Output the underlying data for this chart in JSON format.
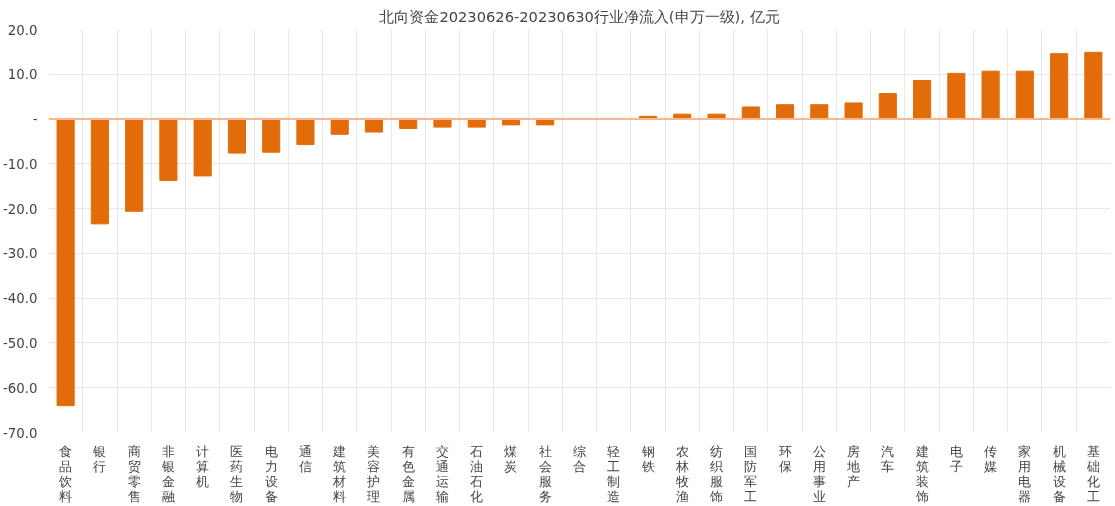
{
  "chart_data": {
    "type": "bar",
    "title": "北向资金20230626-20230630行业净流入(申万一级), 亿元",
    "categories": [
      "食品饮料",
      "银行",
      "商贸零售",
      "非银金融",
      "计算机",
      "医药生物",
      "电力设备",
      "通信",
      "建筑材料",
      "美容护理",
      "有色金属",
      "交通运输",
      "石油石化",
      "煤炭",
      "社会服务",
      "综合",
      "轻工制造",
      "钢铁",
      "农林牧渔",
      "纺织服饰",
      "国防军工",
      "环保",
      "公用事业",
      "房地产",
      "汽车",
      "建筑装饰",
      "电子",
      "传媒",
      "家用电器",
      "机械设备",
      "基础化工"
    ],
    "values": [
      -64.0,
      -23.4,
      -20.6,
      -13.7,
      -12.7,
      -7.6,
      -7.4,
      -5.7,
      -3.4,
      -2.9,
      -2.1,
      -1.8,
      -1.8,
      -1.3,
      -1.3,
      null,
      null,
      0.6,
      1.1,
      1.1,
      2.7,
      3.2,
      3.2,
      3.6,
      5.7,
      8.6,
      10.2,
      10.7,
      10.7,
      14.6,
      14.9
    ],
    "color": "#e36c0a",
    "ylim": [
      -70,
      20
    ],
    "yticks": [
      {
        "value": -70,
        "label": "-70.0"
      },
      {
        "value": -60,
        "label": "-60.0"
      },
      {
        "value": -50,
        "label": "-50.0"
      },
      {
        "value": -40,
        "label": "-40.0"
      },
      {
        "value": -30,
        "label": "-30.0"
      },
      {
        "value": -20,
        "label": "-20.0"
      },
      {
        "value": -10,
        "label": "-10.0"
      },
      {
        "value": 0,
        "label": "-"
      },
      {
        "value": 10,
        "label": "10.0"
      },
      {
        "value": 20,
        "label": "20.0"
      }
    ],
    "ref_lines": [
      {
        "axis": "y",
        "value": 0,
        "label": null,
        "color": "#f8b88b"
      }
    ],
    "grid": true
  }
}
